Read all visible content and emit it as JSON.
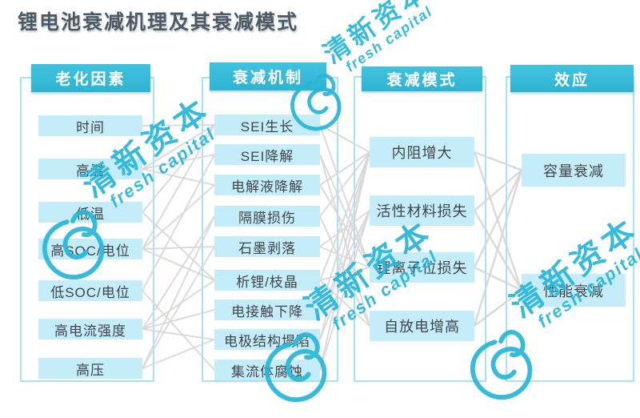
{
  "title": "锂电池衰减机理及其衰减模式",
  "watermark": {
    "cn": "清新资本",
    "en": "fresh capital"
  },
  "colors": {
    "header_bg": "#35b9d7",
    "item_bg": "#c4ecf9",
    "container_border": "#a7e3f4",
    "connection_line": "#d7d7d7",
    "title_text": "#4d5a63",
    "item_text": "#3f464b",
    "watermark": "#28b6d9"
  },
  "columns": [
    {
      "header": "老化因素",
      "items": [
        "时间",
        "高温",
        "低温",
        "高SOC/电位",
        "低SOC/电位",
        "高电流强度",
        "高压"
      ]
    },
    {
      "header": "衰减机制",
      "items": [
        "SEI生长",
        "SEI降解",
        "电解液降解",
        "隔膜损伤",
        "石墨剥落",
        "析锂/枝晶",
        "电接触下降",
        "电极结构塌陷",
        "集流体腐蚀"
      ]
    },
    {
      "header": "衰减模式",
      "items": [
        "内阻增大",
        "活性材料损失",
        "锂离子位损失",
        "自放电增高"
      ]
    },
    {
      "header": "效应",
      "items": [
        "容量衰减",
        "性能衰减"
      ]
    }
  ],
  "connections": {
    "factors_to_mechanisms": [
      [
        0,
        0
      ],
      [
        1,
        0
      ],
      [
        1,
        1
      ],
      [
        1,
        2
      ],
      [
        2,
        0
      ],
      [
        2,
        5
      ],
      [
        3,
        0
      ],
      [
        3,
        2
      ],
      [
        3,
        4
      ],
      [
        3,
        5
      ],
      [
        4,
        1
      ],
      [
        4,
        8
      ],
      [
        5,
        3
      ],
      [
        5,
        5
      ],
      [
        5,
        6
      ],
      [
        5,
        7
      ],
      [
        6,
        3
      ],
      [
        6,
        4
      ],
      [
        6,
        7
      ]
    ],
    "mechanisms_to_modes": [
      [
        0,
        0
      ],
      [
        0,
        2
      ],
      [
        1,
        2
      ],
      [
        1,
        3
      ],
      [
        2,
        0
      ],
      [
        2,
        2
      ],
      [
        3,
        0
      ],
      [
        3,
        3
      ],
      [
        4,
        1
      ],
      [
        4,
        2
      ],
      [
        5,
        0
      ],
      [
        5,
        2
      ],
      [
        5,
        3
      ],
      [
        6,
        0
      ],
      [
        6,
        1
      ],
      [
        7,
        0
      ],
      [
        7,
        1
      ],
      [
        8,
        0
      ],
      [
        8,
        1
      ]
    ],
    "modes_to_effects": [
      [
        0,
        0
      ],
      [
        0,
        1
      ],
      [
        1,
        0
      ],
      [
        1,
        1
      ],
      [
        2,
        0
      ],
      [
        2,
        1
      ],
      [
        3,
        0
      ],
      [
        3,
        1
      ]
    ]
  }
}
